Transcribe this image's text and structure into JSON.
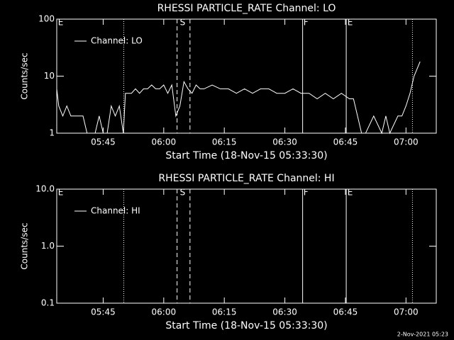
{
  "chart_data": [
    {
      "type": "line",
      "title": "RHESSI PARTICLE_RATE Channel: LO",
      "x_label": "Start Time (18-Nov-15 05:33:30)",
      "y_label": "Counts/sec",
      "log_y": true,
      "xlim": [
        333.5,
        427.5
      ],
      "ylim": [
        1,
        100
      ],
      "xticks": [
        {
          "value": 345,
          "label": "05:45"
        },
        {
          "value": 360,
          "label": "06:00"
        },
        {
          "value": 375,
          "label": "06:15"
        },
        {
          "value": 390,
          "label": "06:30"
        },
        {
          "value": 405,
          "label": "06:45"
        },
        {
          "value": 420,
          "label": "07:00"
        }
      ],
      "yticks": [
        1,
        10,
        100
      ],
      "legend": "upper left",
      "events": [
        {
          "x": 350.1,
          "style": "dotted"
        },
        {
          "x": 363.3,
          "style": "dashed"
        },
        {
          "x": 366.5,
          "style": "dashed"
        },
        {
          "x": 394.4,
          "style": "solid"
        },
        {
          "x": 405.2,
          "style": "solid"
        },
        {
          "x": 421.6,
          "style": "dotted"
        }
      ],
      "flags": [
        {
          "label": "E",
          "x": 333.8
        },
        {
          "label": "S",
          "x": 364.0
        },
        {
          "label": "F",
          "x": 394.6
        },
        {
          "label": "E",
          "x": 405.5
        }
      ],
      "series": [
        {
          "name": "Channel: LO",
          "color": "#ffffff",
          "x": [
            333.5,
            334,
            335,
            336,
            337,
            338,
            339,
            340,
            341,
            342,
            343,
            344,
            345,
            346,
            347,
            348,
            349,
            350,
            350.5,
            351,
            352,
            353,
            354,
            355,
            356,
            357,
            358,
            359,
            360,
            361,
            362,
            363,
            364,
            365,
            366,
            367,
            368,
            369,
            370,
            372,
            374,
            376,
            378,
            380,
            382,
            384,
            386,
            388,
            390,
            392,
            394,
            396,
            398,
            400,
            402,
            404,
            406,
            407,
            408,
            409,
            410,
            412,
            414,
            415,
            416,
            418,
            419,
            420,
            421,
            422,
            423.5
          ],
          "values": [
            6,
            3,
            2,
            3,
            2,
            2,
            2,
            2,
            1,
            1,
            1,
            2,
            1,
            1,
            3,
            2,
            3,
            1,
            5,
            5,
            5,
            6,
            5,
            6,
            6,
            7,
            6,
            6,
            7,
            5,
            7,
            2,
            3,
            8,
            6,
            5,
            7,
            6,
            6,
            7,
            6,
            6,
            5,
            6,
            5,
            6,
            6,
            5,
            5,
            6,
            5,
            5,
            4,
            5,
            4,
            5,
            4,
            4,
            2,
            1,
            1,
            2,
            1,
            2,
            1,
            2,
            2,
            3,
            5,
            10,
            18
          ]
        }
      ]
    },
    {
      "type": "line",
      "title": "RHESSI PARTICLE_RATE Channel: HI",
      "x_label": "Start Time (18-Nov-15 05:33:30)",
      "y_label": "Counts/sec",
      "log_y": true,
      "xlim": [
        333.5,
        427.5
      ],
      "ylim": [
        0.1,
        10
      ],
      "xticks": [
        {
          "value": 345,
          "label": "05:45"
        },
        {
          "value": 360,
          "label": "06:00"
        },
        {
          "value": 375,
          "label": "06:15"
        },
        {
          "value": 390,
          "label": "06:30"
        },
        {
          "value": 405,
          "label": "06:45"
        },
        {
          "value": 420,
          "label": "07:00"
        }
      ],
      "yticks": [
        {
          "value": 0.1,
          "label": "0.1"
        },
        {
          "value": 1,
          "label": "1.0"
        },
        {
          "value": 10,
          "label": "10.0"
        }
      ],
      "legend": "upper left",
      "events": [
        {
          "x": 350.1,
          "style": "dotted"
        },
        {
          "x": 363.3,
          "style": "dashed"
        },
        {
          "x": 366.5,
          "style": "dashed"
        },
        {
          "x": 394.4,
          "style": "solid"
        },
        {
          "x": 405.2,
          "style": "solid"
        },
        {
          "x": 421.6,
          "style": "dotted"
        }
      ],
      "flags": [
        {
          "label": "E",
          "x": 333.8
        },
        {
          "label": "S",
          "x": 364.0
        },
        {
          "label": "F",
          "x": 394.6
        },
        {
          "label": "E",
          "x": 405.5
        }
      ],
      "series": [
        {
          "name": "Channel: HI",
          "color": "#ffffff",
          "x": [],
          "values": []
        }
      ]
    }
  ],
  "footer": "2-Nov-2021 05:23"
}
